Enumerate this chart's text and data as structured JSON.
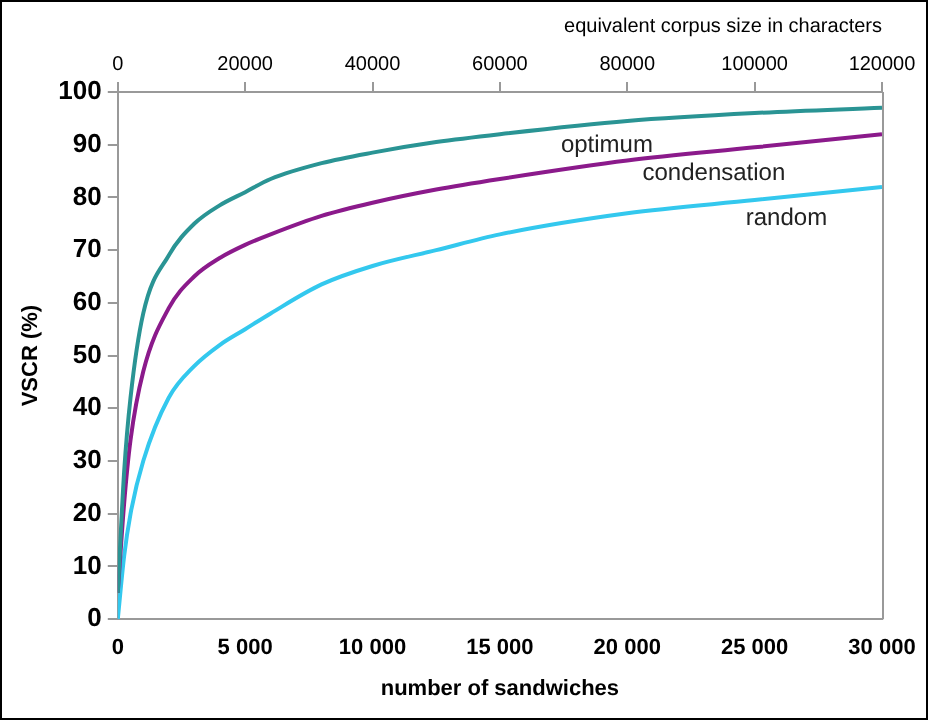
{
  "chart_data": {
    "type": "line",
    "xlabel": "number of sandwiches",
    "ylabel": "VSCR (%)",
    "x2label": "equivalent corpus size in characters",
    "x": [
      0,
      250,
      500,
      1000,
      2000,
      3000,
      4000,
      5000,
      6000,
      8000,
      10000,
      12500,
      15000,
      20000,
      25000,
      30000
    ],
    "series": [
      {
        "name": "optimum",
        "color": "#2a9494",
        "values": [
          5,
          28,
          42,
          58,
          69,
          75,
          78.5,
          81,
          83.5,
          86.5,
          88.5,
          90.5,
          92,
          94.5,
          96,
          97
        ]
      },
      {
        "name": "condensation",
        "color": "#8b1a8b",
        "values": [
          5,
          22,
          34,
          47,
          59,
          65,
          68.5,
          71,
          73,
          76.5,
          79,
          81.5,
          83.5,
          87,
          89.5,
          92
        ]
      },
      {
        "name": "random",
        "color": "#33c8ee",
        "values": [
          0,
          12,
          20,
          30,
          42,
          48,
          52,
          55,
          58,
          63.5,
          67,
          70,
          73,
          77,
          79.5,
          82
        ]
      }
    ],
    "xlim": [
      0,
      30000
    ],
    "xticks": [
      0,
      {
        "value": 5000,
        "label": "5 000"
      },
      {
        "value": 10000,
        "label": "10 000"
      },
      {
        "value": 15000,
        "label": "15 000"
      },
      {
        "value": 20000,
        "label": "20 000"
      },
      {
        "value": 25000,
        "label": "25 000"
      },
      {
        "value": 30000,
        "label": "30 000"
      }
    ],
    "x2lim": [
      0,
      120000
    ],
    "x2ticks": [
      0,
      20000,
      40000,
      60000,
      80000,
      100000,
      120000
    ],
    "ylim": [
      0,
      100
    ],
    "yticks": [
      0,
      10,
      20,
      30,
      40,
      50,
      60,
      70,
      80,
      90,
      100
    ],
    "grid": false,
    "legend": false,
    "marker": "none",
    "line_style": "solid"
  }
}
